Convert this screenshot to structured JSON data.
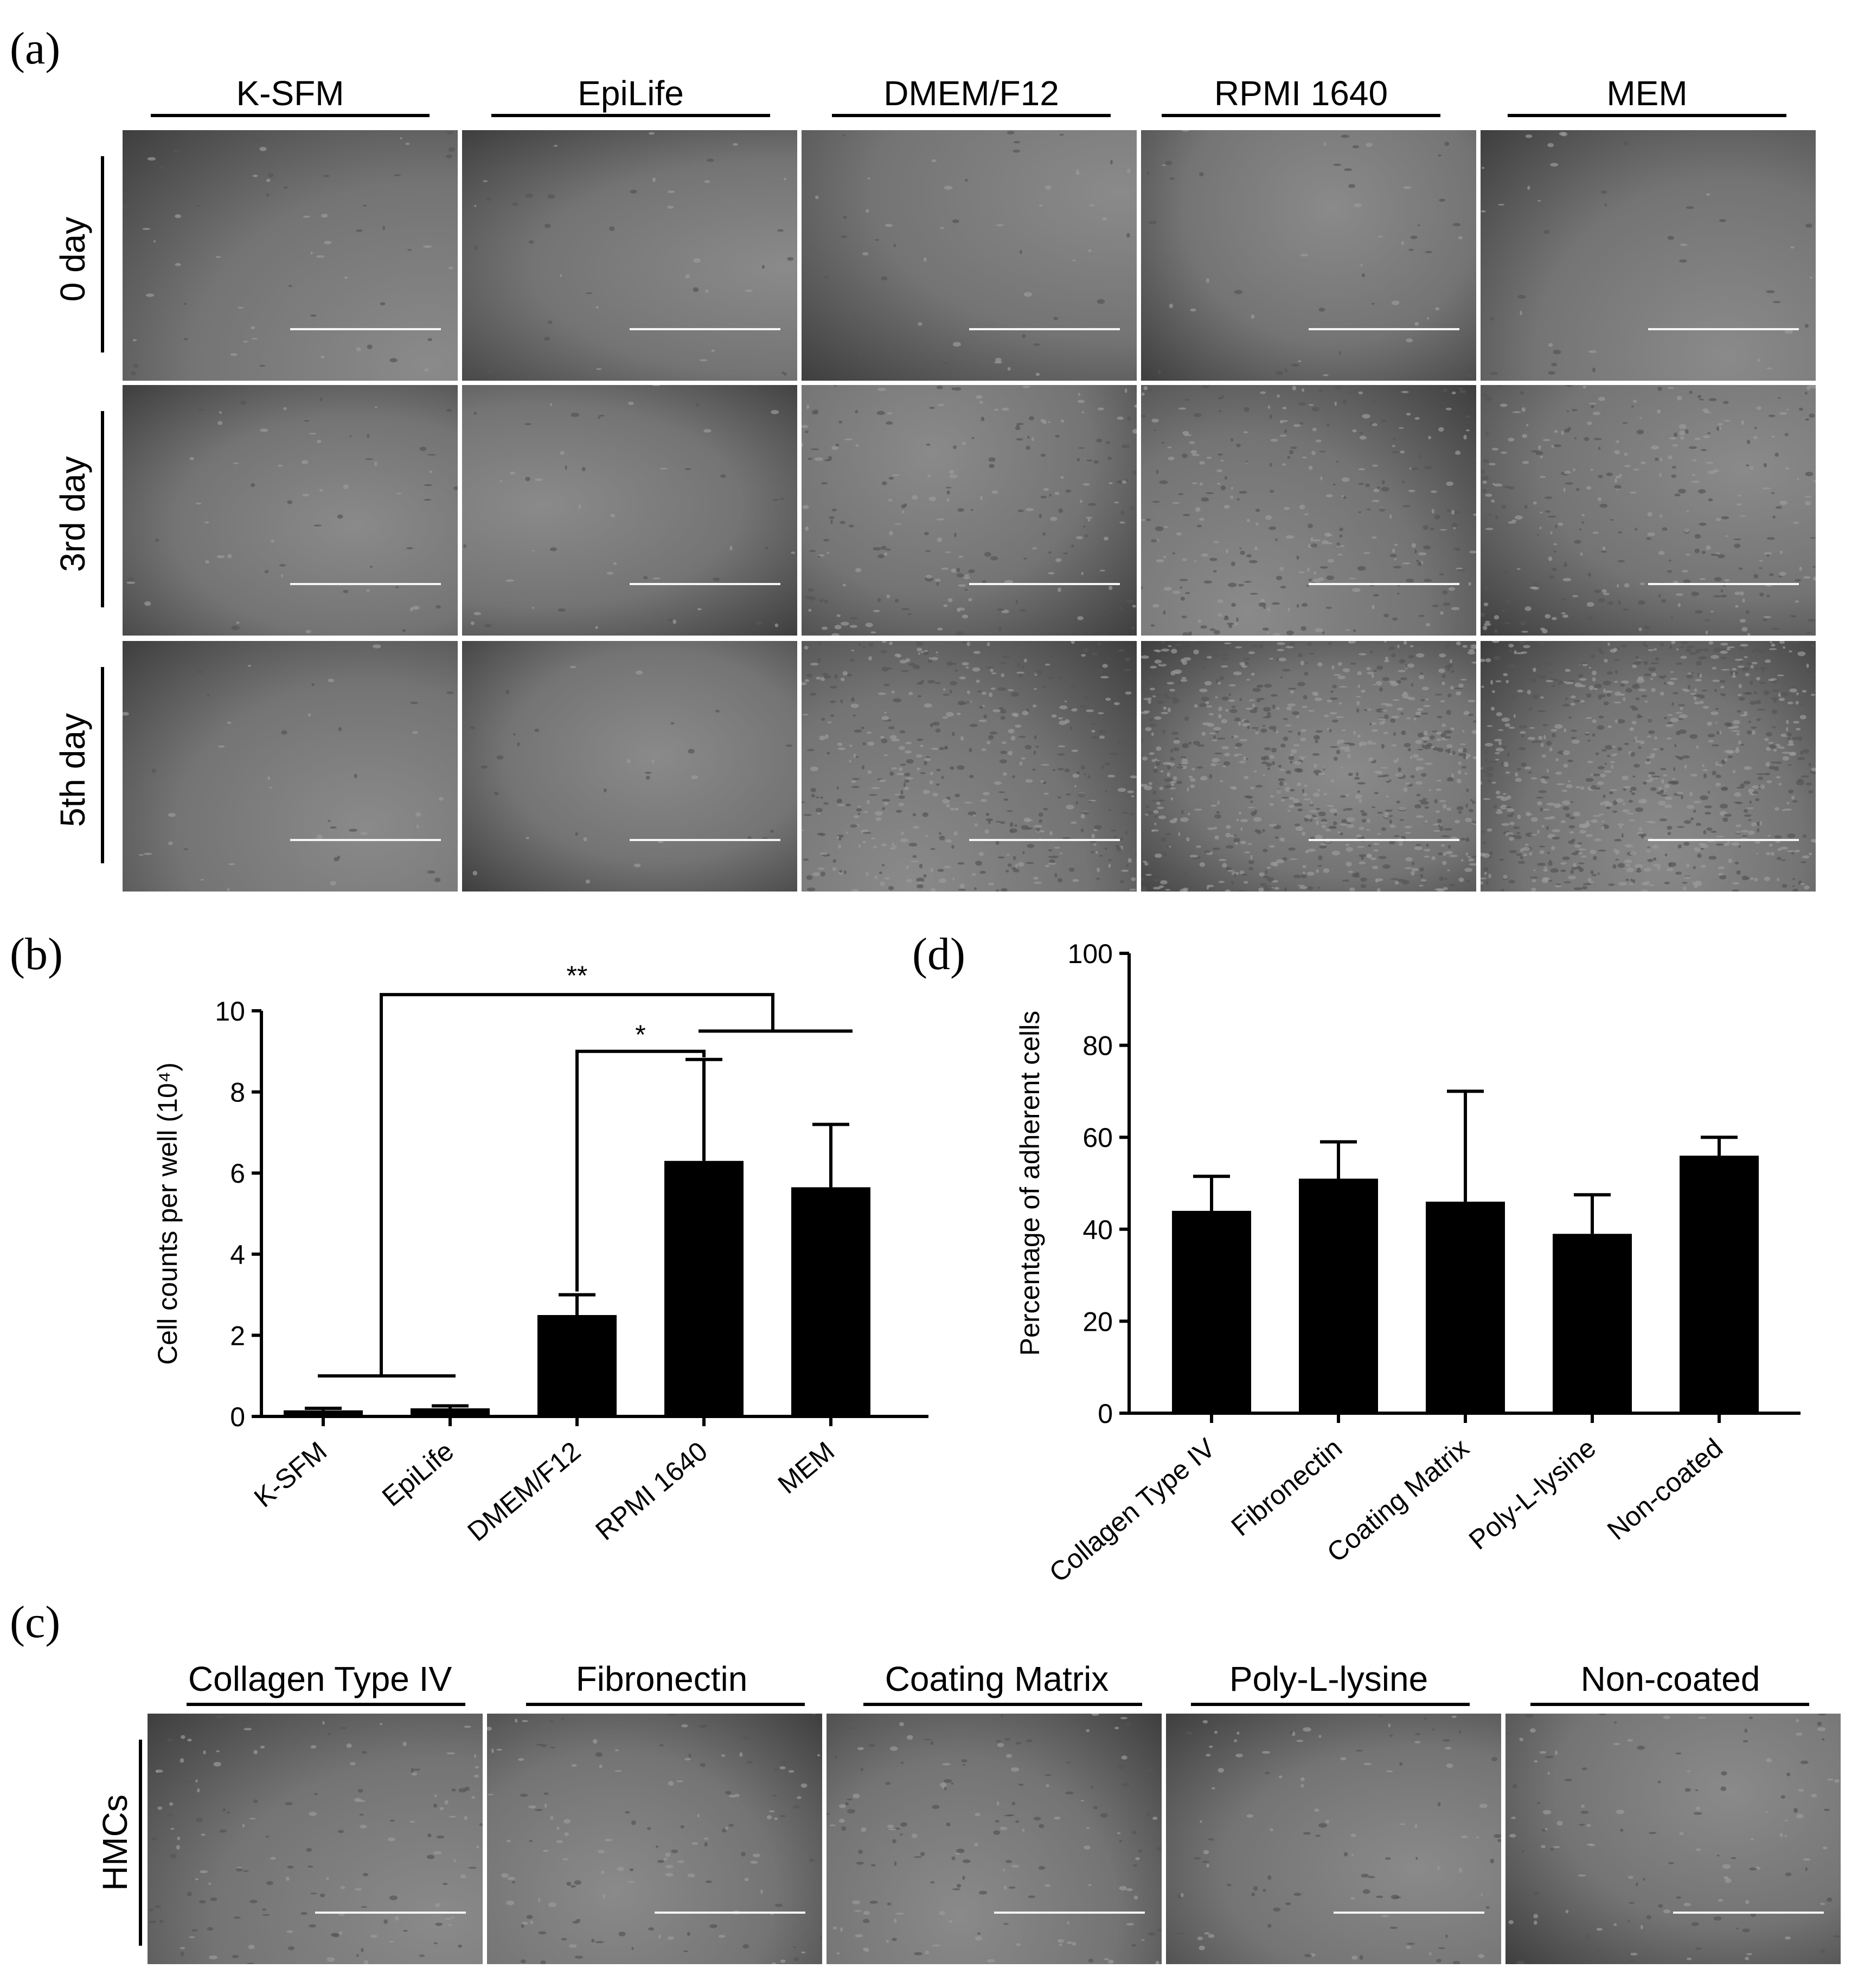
{
  "panel_a": {
    "letter": "(a)",
    "columns": [
      "K-SFM",
      "EpiLife",
      "DMEM/F12",
      "RPMI 1640",
      "MEM"
    ],
    "rows": [
      "0 day",
      "3rd day",
      "5th day"
    ]
  },
  "panel_c": {
    "letter": "(c)",
    "columns": [
      "Collagen Type IV",
      "Fibronectin",
      "Coating Matrix",
      "Poly-L-lysine",
      "Non-coated"
    ],
    "rows": [
      "HMCs"
    ]
  },
  "chart_data": [
    {
      "panel": "(b)",
      "type": "bar",
      "categories": [
        "K-SFM",
        "EpiLife",
        "DMEM/F12",
        "RPMI 1640",
        "MEM"
      ],
      "values": [
        0.15,
        0.2,
        2.5,
        6.3,
        5.65
      ],
      "errors": [
        0.05,
        0.06,
        0.5,
        2.5,
        1.55
      ],
      "ylabel": "Cell counts per well (10⁴)",
      "ylim": [
        0,
        10
      ],
      "yticks": [
        0,
        2,
        4,
        6,
        8,
        10
      ],
      "bar_color": "#000000",
      "significance": [
        {
          "label": "*",
          "from": "DMEM/F12",
          "to": "RPMI 1640"
        },
        {
          "label": "**",
          "from": "K-SFM + EpiLife",
          "to": "RPMI 1640 + MEM"
        }
      ]
    },
    {
      "panel": "(d)",
      "type": "bar",
      "categories": [
        "Collagen Type IV",
        "Fibronectin",
        "Coating Matrix",
        "Poly-L-lysine",
        "Non-coated"
      ],
      "values": [
        44,
        51,
        46,
        39,
        56
      ],
      "errors": [
        7.5,
        8,
        24,
        8.5,
        4
      ],
      "ylabel": "Percentage of adherent cells",
      "ylim": [
        0,
        100
      ],
      "yticks": [
        0,
        20,
        40,
        60,
        80,
        100
      ],
      "bar_color": "#000000"
    }
  ]
}
